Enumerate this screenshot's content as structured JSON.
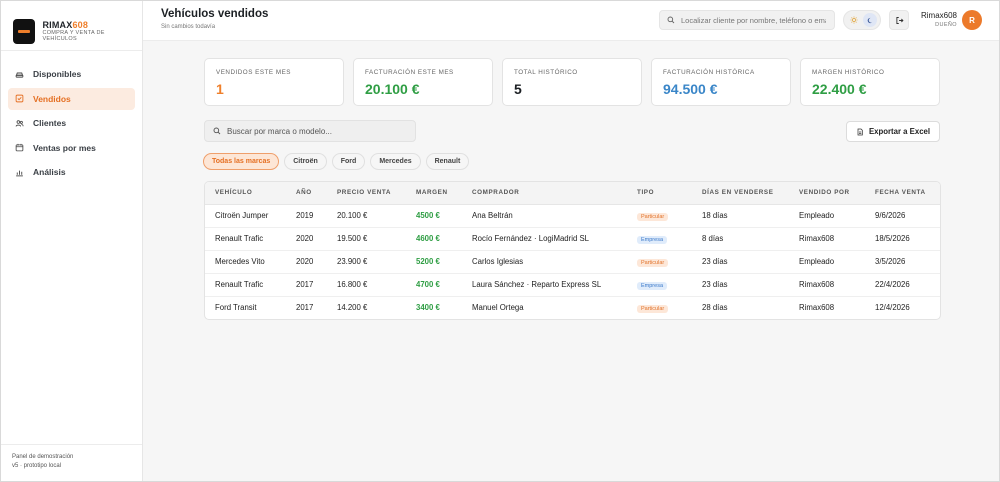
{
  "brand": {
    "name_prefix": "RIMAX",
    "name_suffix": "608",
    "tagline": "COMPRA Y VENTA DE VEHÍCULOS"
  },
  "sidebar": {
    "items": [
      {
        "label": "Disponibles",
        "icon": "car-icon",
        "active": false
      },
      {
        "label": "Vendidos",
        "icon": "checkbox-icon",
        "active": true
      },
      {
        "label": "Clientes",
        "icon": "users-icon",
        "active": false
      },
      {
        "label": "Ventas por mes",
        "icon": "calendar-icon",
        "active": false
      },
      {
        "label": "Análisis",
        "icon": "bar-chart-icon",
        "active": false
      }
    ],
    "footer_line1": "Panel de demostración",
    "footer_line2": "v5 · prototipo local"
  },
  "header": {
    "title": "Vehículos vendidos",
    "subtitle": "Sin cambios todavía",
    "search_placeholder": "Localizar cliente por nombre, teléfono o email",
    "user_name": "Rimax608",
    "user_role": "DUEÑO",
    "avatar_initial": "R"
  },
  "kpis": [
    {
      "label": "VENDIDOS ESTE MES",
      "value": "1",
      "color": "#ef7f2b"
    },
    {
      "label": "FACTURACIÓN ESTE MES",
      "value": "20.100 €",
      "color": "#2f9e44"
    },
    {
      "label": "TOTAL HISTÓRICO",
      "value": "5",
      "color": "#1b1f23"
    },
    {
      "label": "FACTURACIÓN HISTÓRICA",
      "value": "94.500 €",
      "color": "#3a86c8"
    },
    {
      "label": "MARGEN HISTÓRICO",
      "value": "22.400 €",
      "color": "#2f9e44"
    }
  ],
  "filters": {
    "search_placeholder": "Buscar por marca o modelo...",
    "export_label": "Exportar a Excel",
    "chips": [
      {
        "label": "Todas las marcas",
        "active": true
      },
      {
        "label": "Citroën",
        "active": false
      },
      {
        "label": "Ford",
        "active": false
      },
      {
        "label": "Mercedes",
        "active": false
      },
      {
        "label": "Renault",
        "active": false
      }
    ]
  },
  "table": {
    "columns": [
      "VEHÍCULO",
      "AÑO",
      "PRECIO VENTA",
      "MARGEN",
      "COMPRADOR",
      "TIPO",
      "DÍAS EN VENDERSE",
      "VENDIDO POR",
      "FECHA VENTA"
    ],
    "rows": [
      {
        "vehiculo": "Citroën Jumper",
        "ano": "2019",
        "precio": "20.100 €",
        "margen": "4500 €",
        "comprador": "Ana Beltrán",
        "tipo": "Particular",
        "dias": "18 días",
        "vendido_por": "Empleado",
        "fecha": "9/6/2026"
      },
      {
        "vehiculo": "Renault Trafic",
        "ano": "2020",
        "precio": "19.500 €",
        "margen": "4600 €",
        "comprador": "Rocío Fernández · LogiMadrid SL",
        "tipo": "Empresa",
        "dias": "8 días",
        "vendido_por": "Rimax608",
        "fecha": "18/5/2026"
      },
      {
        "vehiculo": "Mercedes Vito",
        "ano": "2020",
        "precio": "23.900 €",
        "margen": "5200 €",
        "comprador": "Carlos Iglesias",
        "tipo": "Particular",
        "dias": "23 días",
        "vendido_por": "Empleado",
        "fecha": "3/5/2026"
      },
      {
        "vehiculo": "Renault Trafic",
        "ano": "2017",
        "precio": "16.800 €",
        "margen": "4700 €",
        "comprador": "Laura Sánchez · Reparto Express SL",
        "tipo": "Empresa",
        "dias": "23 días",
        "vendido_por": "Rimax608",
        "fecha": "22/4/2026"
      },
      {
        "vehiculo": "Ford Transit",
        "ano": "2017",
        "precio": "14.200 €",
        "margen": "3400 €",
        "comprador": "Manuel Ortega",
        "tipo": "Particular",
        "dias": "28 días",
        "vendido_por": "Rimax608",
        "fecha": "12/4/2026"
      }
    ]
  },
  "colors": {
    "accent": "#ef7f2b",
    "positive": "#2f9e44",
    "info": "#3a86c8"
  }
}
